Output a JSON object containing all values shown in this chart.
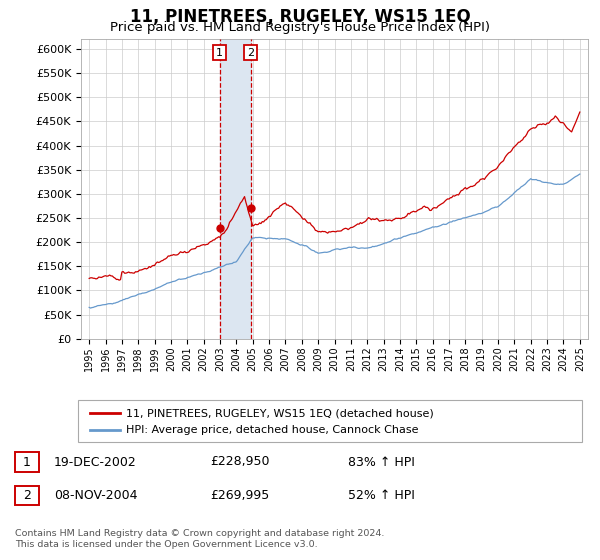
{
  "title": "11, PINETREES, RUGELEY, WS15 1EQ",
  "subtitle": "Price paid vs. HM Land Registry's House Price Index (HPI)",
  "ylabel_ticks": [
    "£0",
    "£50K",
    "£100K",
    "£150K",
    "£200K",
    "£250K",
    "£300K",
    "£350K",
    "£400K",
    "£450K",
    "£500K",
    "£550K",
    "£600K"
  ],
  "ytick_vals": [
    0,
    50000,
    100000,
    150000,
    200000,
    250000,
    300000,
    350000,
    400000,
    450000,
    500000,
    550000,
    600000
  ],
  "ylim": [
    0,
    620000
  ],
  "xlim_start": 1994.5,
  "xlim_end": 2025.5,
  "xtick_labels": [
    "1995",
    "1996",
    "1997",
    "1998",
    "1999",
    "2000",
    "2001",
    "2002",
    "2003",
    "2004",
    "2005",
    "2006",
    "2007",
    "2008",
    "2009",
    "2010",
    "2011",
    "2012",
    "2013",
    "2014",
    "2015",
    "2016",
    "2017",
    "2018",
    "2019",
    "2020",
    "2021",
    "2022",
    "2023",
    "2024",
    "2025"
  ],
  "sale1_x": 2002.97,
  "sale1_y": 228950,
  "sale2_x": 2004.87,
  "sale2_y": 269995,
  "vline1_x": 2002.97,
  "vline2_x": 2004.87,
  "highlight_color": "#dce6f1",
  "vline_color": "#cc0000",
  "red_line_color": "#cc0000",
  "blue_line_color": "#6699cc",
  "legend_red_label": "11, PINETREES, RUGELEY, WS15 1EQ (detached house)",
  "legend_blue_label": "HPI: Average price, detached house, Cannock Chase",
  "sale1_date": "19-DEC-2002",
  "sale1_price": "£228,950",
  "sale1_pct": "83% ↑ HPI",
  "sale2_date": "08-NOV-2004",
  "sale2_price": "£269,995",
  "sale2_pct": "52% ↑ HPI",
  "footnote": "Contains HM Land Registry data © Crown copyright and database right 2024.\nThis data is licensed under the Open Government Licence v3.0.",
  "bg_color": "#ffffff",
  "grid_color": "#cccccc"
}
